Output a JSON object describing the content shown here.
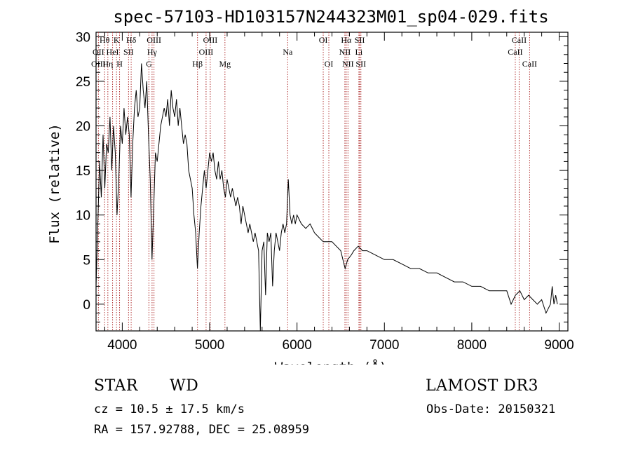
{
  "chart_data": {
    "type": "line",
    "title": "spec-57103-HD103157N244323M01_sp04-029.fits",
    "xlabel": "Wavelength (Å)",
    "ylabel": "Flux (relative)",
    "xlim": [
      3700,
      9100
    ],
    "ylim": [
      -3,
      30.5
    ],
    "xticks": [
      4000,
      5000,
      6000,
      7000,
      8000,
      9000
    ],
    "yticks": [
      0,
      5,
      10,
      15,
      20,
      25,
      30
    ],
    "series": [
      {
        "name": "flux",
        "points": [
          [
            3700,
            2
          ],
          [
            3720,
            9
          ],
          [
            3740,
            16
          ],
          [
            3760,
            12
          ],
          [
            3780,
            19
          ],
          [
            3800,
            13
          ],
          [
            3820,
            18
          ],
          [
            3840,
            17
          ],
          [
            3860,
            21
          ],
          [
            3880,
            15
          ],
          [
            3900,
            20
          ],
          [
            3920,
            17
          ],
          [
            3940,
            10
          ],
          [
            3960,
            14
          ],
          [
            3980,
            20
          ],
          [
            4000,
            18
          ],
          [
            4020,
            22
          ],
          [
            4040,
            19
          ],
          [
            4060,
            21
          ],
          [
            4080,
            19
          ],
          [
            4100,
            12
          ],
          [
            4120,
            18
          ],
          [
            4140,
            22
          ],
          [
            4160,
            24
          ],
          [
            4180,
            21
          ],
          [
            4200,
            22
          ],
          [
            4220,
            27
          ],
          [
            4240,
            24
          ],
          [
            4260,
            22
          ],
          [
            4280,
            25
          ],
          [
            4300,
            19
          ],
          [
            4320,
            14
          ],
          [
            4340,
            5
          ],
          [
            4360,
            11
          ],
          [
            4380,
            17
          ],
          [
            4400,
            16
          ],
          [
            4420,
            18
          ],
          [
            4440,
            20
          ],
          [
            4460,
            21
          ],
          [
            4480,
            22
          ],
          [
            4500,
            21
          ],
          [
            4520,
            23
          ],
          [
            4540,
            20
          ],
          [
            4560,
            24
          ],
          [
            4580,
            22
          ],
          [
            4600,
            21
          ],
          [
            4620,
            23
          ],
          [
            4640,
            20
          ],
          [
            4660,
            22
          ],
          [
            4680,
            20
          ],
          [
            4700,
            18
          ],
          [
            4720,
            19
          ],
          [
            4740,
            18
          ],
          [
            4760,
            15
          ],
          [
            4780,
            14
          ],
          [
            4800,
            13
          ],
          [
            4820,
            10
          ],
          [
            4840,
            8
          ],
          [
            4860,
            4
          ],
          [
            4880,
            8
          ],
          [
            4900,
            11
          ],
          [
            4920,
            13
          ],
          [
            4940,
            15
          ],
          [
            4960,
            13
          ],
          [
            4980,
            15
          ],
          [
            5000,
            17
          ],
          [
            5020,
            16
          ],
          [
            5040,
            17
          ],
          [
            5060,
            15
          ],
          [
            5080,
            14
          ],
          [
            5100,
            16
          ],
          [
            5120,
            14
          ],
          [
            5140,
            15
          ],
          [
            5160,
            13
          ],
          [
            5180,
            12
          ],
          [
            5200,
            14
          ],
          [
            5220,
            13
          ],
          [
            5240,
            12
          ],
          [
            5260,
            13
          ],
          [
            5280,
            12
          ],
          [
            5300,
            11
          ],
          [
            5320,
            12
          ],
          [
            5340,
            11
          ],
          [
            5360,
            9
          ],
          [
            5380,
            11
          ],
          [
            5400,
            10
          ],
          [
            5420,
            9
          ],
          [
            5440,
            8
          ],
          [
            5460,
            9
          ],
          [
            5480,
            8
          ],
          [
            5500,
            7
          ],
          [
            5520,
            8
          ],
          [
            5540,
            7
          ],
          [
            5560,
            6
          ],
          [
            5580,
            -3
          ],
          [
            5600,
            6
          ],
          [
            5620,
            7
          ],
          [
            5640,
            1
          ],
          [
            5660,
            8
          ],
          [
            5680,
            7
          ],
          [
            5700,
            8
          ],
          [
            5720,
            2
          ],
          [
            5740,
            6
          ],
          [
            5760,
            8
          ],
          [
            5780,
            7
          ],
          [
            5800,
            6
          ],
          [
            5820,
            8
          ],
          [
            5840,
            9
          ],
          [
            5860,
            8
          ],
          [
            5880,
            9
          ],
          [
            5900,
            14
          ],
          [
            5920,
            10
          ],
          [
            5940,
            9
          ],
          [
            5960,
            10
          ],
          [
            5980,
            9
          ],
          [
            6000,
            10
          ],
          [
            6050,
            9
          ],
          [
            6100,
            8.5
          ],
          [
            6150,
            9
          ],
          [
            6200,
            8
          ],
          [
            6250,
            7.5
          ],
          [
            6300,
            7
          ],
          [
            6350,
            7
          ],
          [
            6400,
            7
          ],
          [
            6450,
            6.5
          ],
          [
            6500,
            6
          ],
          [
            6550,
            4
          ],
          [
            6580,
            5
          ],
          [
            6620,
            5.5
          ],
          [
            6650,
            6
          ],
          [
            6700,
            6.5
          ],
          [
            6750,
            6
          ],
          [
            6800,
            6
          ],
          [
            6900,
            5.5
          ],
          [
            7000,
            5
          ],
          [
            7100,
            5
          ],
          [
            7200,
            4.5
          ],
          [
            7300,
            4
          ],
          [
            7400,
            4
          ],
          [
            7500,
            3.5
          ],
          [
            7600,
            3.5
          ],
          [
            7700,
            3
          ],
          [
            7800,
            2.5
          ],
          [
            7900,
            2.5
          ],
          [
            8000,
            2
          ],
          [
            8100,
            2
          ],
          [
            8200,
            1.5
          ],
          [
            8300,
            1.5
          ],
          [
            8400,
            1.5
          ],
          [
            8450,
            0
          ],
          [
            8500,
            1
          ],
          [
            8550,
            1.5
          ],
          [
            8600,
            0.5
          ],
          [
            8650,
            1
          ],
          [
            8700,
            0.5
          ],
          [
            8750,
            0
          ],
          [
            8800,
            0.5
          ],
          [
            8850,
            -1
          ],
          [
            8900,
            0
          ],
          [
            8920,
            2
          ],
          [
            8940,
            0
          ],
          [
            8960,
            1
          ],
          [
            8980,
            0
          ]
        ]
      }
    ],
    "annotations": [
      {
        "label": "Hθ",
        "x": 3798,
        "row": 0
      },
      {
        "label": "K",
        "x": 3934,
        "row": 0
      },
      {
        "label": "Hδ",
        "x": 4102,
        "row": 0
      },
      {
        "label": "OII",
        "x": 3727,
        "row": 1
      },
      {
        "label": "HeI",
        "x": 3889,
        "row": 1
      },
      {
        "label": "SII",
        "x": 4072,
        "row": 1
      },
      {
        "label": "OIII",
        "x": 3727,
        "row": 2
      },
      {
        "label": "Hη",
        "x": 3835,
        "row": 2
      },
      {
        "label": "H",
        "x": 3969,
        "row": 2
      },
      {
        "label": "OIII",
        "x": 4363,
        "row": 0
      },
      {
        "label": "Hγ",
        "x": 4341,
        "row": 1
      },
      {
        "label": "G",
        "x": 4305,
        "row": 2
      },
      {
        "label": "OIII",
        "x": 5007,
        "row": 0
      },
      {
        "label": "OIII",
        "x": 4959,
        "row": 1
      },
      {
        "label": "Hβ",
        "x": 4861,
        "row": 2
      },
      {
        "label": "Mg",
        "x": 5175,
        "row": 2
      },
      {
        "label": "Na",
        "x": 5893,
        "row": 1
      },
      {
        "label": "OI",
        "x": 6300,
        "row": 0
      },
      {
        "label": "OI",
        "x": 6364,
        "row": 2
      },
      {
        "label": "Hα",
        "x": 6563,
        "row": 0
      },
      {
        "label": "SII",
        "x": 6717,
        "row": 0
      },
      {
        "label": "NII",
        "x": 6548,
        "row": 1
      },
      {
        "label": "Li",
        "x": 6708,
        "row": 1
      },
      {
        "label": "NII",
        "x": 6583,
        "row": 2
      },
      {
        "label": "SII",
        "x": 6731,
        "row": 2
      },
      {
        "label": "CaII",
        "x": 8542,
        "row": 0
      },
      {
        "label": "CaII",
        "x": 8498,
        "row": 1
      },
      {
        "label": "CaII",
        "x": 8662,
        "row": 2
      }
    ],
    "line_markers": [
      3727,
      3798,
      3835,
      3889,
      3934,
      3969,
      4072,
      4102,
      4305,
      4341,
      4363,
      4861,
      4959,
      5007,
      5175,
      5893,
      6300,
      6364,
      6548,
      6563,
      6583,
      6708,
      6717,
      6731,
      8498,
      8542,
      8662
    ]
  },
  "info": {
    "class": "STAR",
    "subclass": "WD",
    "survey": "LAMOST DR3",
    "cz": "cz = 10.5 ± 17.5 km/s",
    "obs_date": "Obs-Date: 20150321",
    "coords": "RA = 157.92788, DEC =  25.08959"
  },
  "colors": {
    "line_marker": "#b03030",
    "spectrum": "#000000"
  }
}
